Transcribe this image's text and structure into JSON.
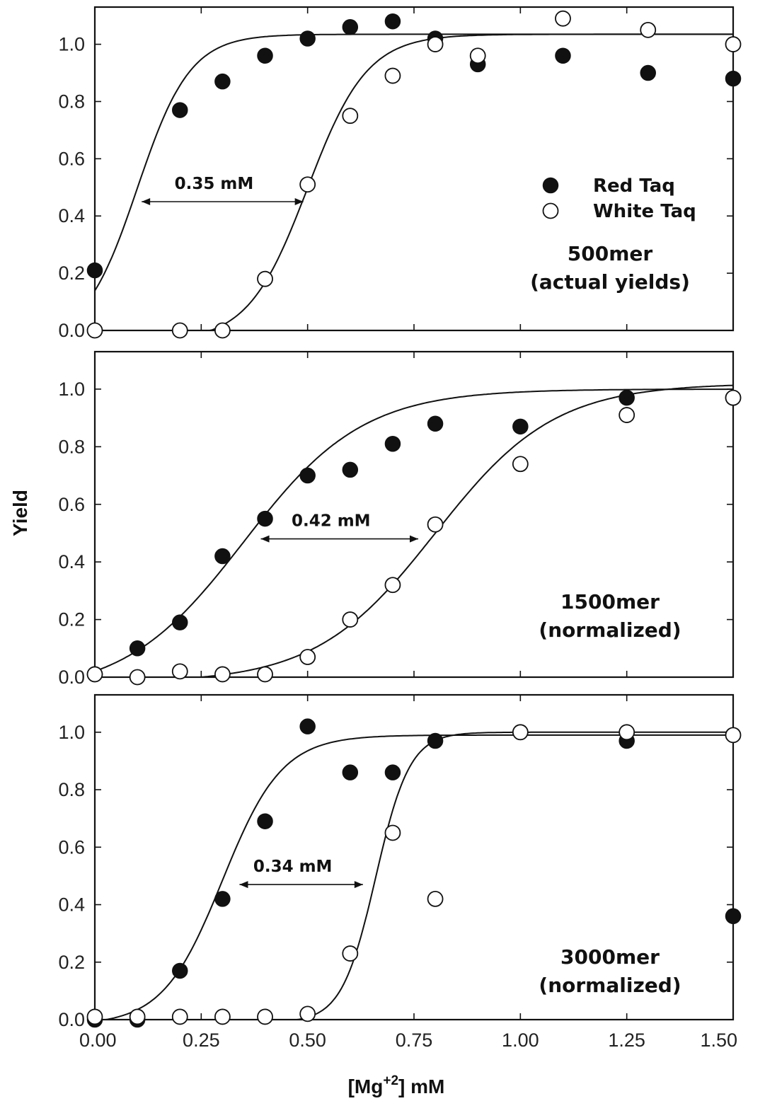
{
  "chart_data": {
    "type": "scatter",
    "xlabel_parts": {
      "pre": "[Mg",
      "sup": "+2",
      "post": "] mM"
    },
    "ylabel": "Yield",
    "x_ticks": [
      "0.00",
      "0.25",
      "0.50",
      "0.75",
      "1.00",
      "1.25",
      "1.50"
    ],
    "x_tick_values": [
      0,
      0.25,
      0.5,
      0.75,
      1.0,
      1.25,
      1.5
    ],
    "y_ticks": [
      "0.0",
      "0.2",
      "0.4",
      "0.6",
      "0.8",
      "1.0"
    ],
    "y_tick_values": [
      0,
      0.2,
      0.4,
      0.6,
      0.8,
      1.0
    ],
    "xlim": [
      0,
      1.5
    ],
    "ylim": [
      0,
      1.13
    ],
    "legend": {
      "placement": "top-right of first panel",
      "entries": [
        {
          "label": "Red Taq",
          "marker": "filled-circle"
        },
        {
          "label": "White Taq",
          "marker": "open-circle"
        }
      ]
    },
    "panels": [
      {
        "label_lines": [
          "500mer",
          "(actual yields)"
        ],
        "annotation": {
          "text": "0.35 mM",
          "y": 0.45,
          "x_from": 0.11,
          "x_to": 0.49
        },
        "series": [
          {
            "name": "Red Taq",
            "x": [
              0.0,
              0.2,
              0.3,
              0.4,
              0.5,
              0.6,
              0.7,
              0.8,
              0.9,
              1.1,
              1.3,
              1.5
            ],
            "y": [
              0.21,
              0.77,
              0.87,
              0.96,
              1.02,
              1.06,
              1.08,
              1.02,
              0.93,
              0.96,
              0.9,
              0.88
            ],
            "fit": {
              "x0": 0.1,
              "k": 0.062,
              "top": 1.035,
              "bottom": -0.04
            }
          },
          {
            "name": "White Taq",
            "x": [
              0.0,
              0.2,
              0.3,
              0.4,
              0.5,
              0.6,
              0.7,
              0.8,
              0.9,
              1.1,
              1.3,
              1.5
            ],
            "y": [
              0.0,
              0.0,
              0.0,
              0.18,
              0.51,
              0.75,
              0.89,
              1.0,
              0.96,
              1.09,
              1.05,
              1.0
            ],
            "fit": {
              "x0": 0.5,
              "k": 0.07,
              "top": 1.035,
              "bottom": -0.04
            }
          }
        ]
      },
      {
        "label_lines": [
          "1500mer",
          "(normalized)"
        ],
        "annotation": {
          "text": "0.42 mM",
          "y": 0.48,
          "x_from": 0.39,
          "x_to": 0.76
        },
        "series": [
          {
            "name": "Red Taq",
            "x": [
              0.0,
              0.1,
              0.2,
              0.3,
              0.4,
              0.5,
              0.6,
              0.7,
              0.8,
              1.0,
              1.25,
              1.5
            ],
            "y": [
              0.01,
              0.1,
              0.19,
              0.42,
              0.55,
              0.7,
              0.72,
              0.81,
              0.88,
              0.87,
              0.97,
              0.97
            ],
            "fit": {
              "x0": 0.35,
              "k": 0.14,
              "top": 1.0,
              "bottom": -0.06
            }
          },
          {
            "name": "White Taq",
            "x": [
              0.0,
              0.1,
              0.2,
              0.3,
              0.4,
              0.5,
              0.6,
              0.7,
              0.8,
              1.0,
              1.25,
              1.5
            ],
            "y": [
              0.01,
              0.0,
              0.02,
              0.01,
              0.01,
              0.07,
              0.2,
              0.32,
              0.53,
              0.74,
              0.91,
              0.97
            ],
            "fit": {
              "x0": 0.8,
              "k": 0.14,
              "top": 1.02,
              "bottom": -0.02
            }
          }
        ]
      },
      {
        "label_lines": [
          "3000mer",
          "(normalized)"
        ],
        "annotation": {
          "text": "0.34 mM",
          "y": 0.47,
          "x_from": 0.34,
          "x_to": 0.63
        },
        "series": [
          {
            "name": "Red Taq",
            "x": [
              0.0,
              0.1,
              0.2,
              0.3,
              0.4,
              0.5,
              0.6,
              0.7,
              0.8,
              1.0,
              1.25,
              1.5
            ],
            "y": [
              0.0,
              0.0,
              0.17,
              0.42,
              0.69,
              1.02,
              0.86,
              0.86,
              0.97,
              1.0,
              0.97,
              0.36
            ],
            "fit": {
              "x0": 0.3,
              "k": 0.07,
              "top": 0.99,
              "bottom": -0.02
            }
          },
          {
            "name": "White Taq",
            "x": [
              0.0,
              0.1,
              0.2,
              0.3,
              0.4,
              0.5,
              0.6,
              0.7,
              0.8,
              1.0,
              1.25,
              1.5
            ],
            "y": [
              0.01,
              0.01,
              0.01,
              0.01,
              0.01,
              0.02,
              0.23,
              0.65,
              0.42,
              1.0,
              1.0,
              0.99
            ],
            "fit": {
              "x0": 0.66,
              "k": 0.04,
              "top": 1.0,
              "bottom": -0.01
            }
          }
        ]
      }
    ]
  }
}
